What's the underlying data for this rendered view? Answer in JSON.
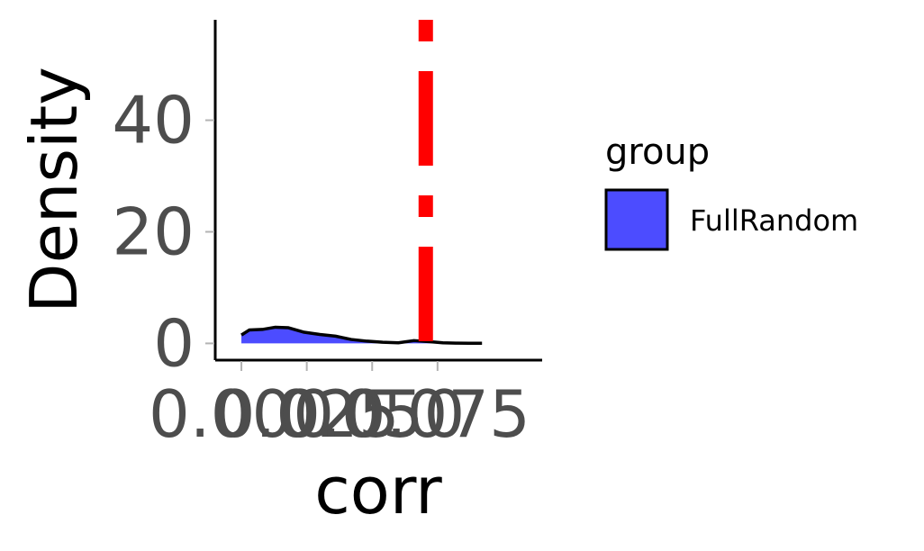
{
  "chart_data": {
    "type": "area",
    "xlabel": "corr",
    "ylabel": "Density",
    "xlim": [
      -0.01,
      0.115
    ],
    "ylim": [
      -3,
      58
    ],
    "x_ticks": [
      0.0,
      0.025,
      0.05,
      0.075
    ],
    "x_tick_labels": [
      "0.000",
      "0.025",
      "0.050",
      "0.075"
    ],
    "y_ticks": [
      0,
      20,
      40
    ],
    "y_tick_labels": [
      "0",
      "20",
      "40"
    ],
    "grid": false,
    "legend": {
      "title": "group",
      "position": "right",
      "entries": [
        {
          "label": "FullRandom",
          "color": "#4c4cff"
        }
      ]
    },
    "series": [
      {
        "name": "FullRandom",
        "fill": "#4c4cff",
        "stroke": "#000000",
        "x": [
          0.0,
          0.003,
          0.008,
          0.013,
          0.018,
          0.024,
          0.03,
          0.036,
          0.042,
          0.048,
          0.054,
          0.06,
          0.066,
          0.072,
          0.077,
          0.082,
          0.087,
          0.092
        ],
        "y": [
          1.5,
          2.4,
          2.5,
          2.9,
          2.8,
          2.0,
          1.6,
          1.3,
          0.7,
          0.4,
          0.2,
          0.1,
          0.5,
          0.3,
          0.1,
          0.05,
          0.02,
          0.02
        ]
      }
    ],
    "reference_line": {
      "x": 0.0705,
      "color": "#ff0000",
      "style": "dashed"
    }
  }
}
